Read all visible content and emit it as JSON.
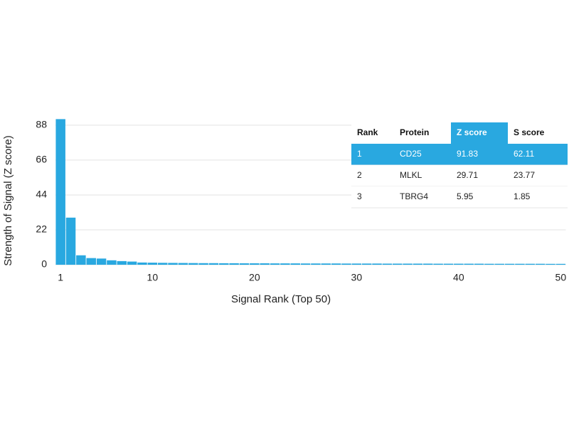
{
  "chart_data": {
    "type": "bar",
    "x": [
      1,
      2,
      3,
      4,
      5,
      6,
      7,
      8,
      9,
      10,
      11,
      12,
      13,
      14,
      15,
      16,
      17,
      18,
      19,
      20,
      21,
      22,
      23,
      24,
      25,
      26,
      27,
      28,
      29,
      30,
      31,
      32,
      33,
      34,
      35,
      36,
      37,
      38,
      39,
      40,
      41,
      42,
      43,
      44,
      45,
      46,
      47,
      48,
      49,
      50
    ],
    "values": [
      91.83,
      29.71,
      5.95,
      4.2,
      3.9,
      2.8,
      2.3,
      2.0,
      1.4,
      1.3,
      1.2,
      1.15,
      1.1,
      1.05,
      1.0,
      1.0,
      0.95,
      0.95,
      0.9,
      0.9,
      0.9,
      0.85,
      0.85,
      0.85,
      0.8,
      0.8,
      0.8,
      0.8,
      0.75,
      0.75,
      0.75,
      0.75,
      0.7,
      0.7,
      0.7,
      0.7,
      0.7,
      0.65,
      0.65,
      0.65,
      0.65,
      0.65,
      0.6,
      0.6,
      0.6,
      0.6,
      0.6,
      0.6,
      0.55,
      0.55
    ],
    "color": "#29a8e0",
    "xlabel": "Signal Rank (Top 50)",
    "ylabel": "Strength of Signal (Z score)",
    "xlim": [
      0.5,
      50.5
    ],
    "xticks": [
      1,
      10,
      20,
      30,
      40,
      50
    ],
    "ylim": [
      0,
      92
    ],
    "yticks": [
      0,
      22,
      44,
      66,
      88
    ],
    "grid": true
  },
  "table": {
    "columns": [
      "Rank",
      "Protein",
      "Z score",
      "S score"
    ],
    "rows": [
      [
        1,
        "CD25",
        91.83,
        62.11
      ],
      [
        2,
        "MLKL",
        29.71,
        23.77
      ],
      [
        3,
        "TBRG4",
        5.95,
        1.85
      ]
    ]
  }
}
